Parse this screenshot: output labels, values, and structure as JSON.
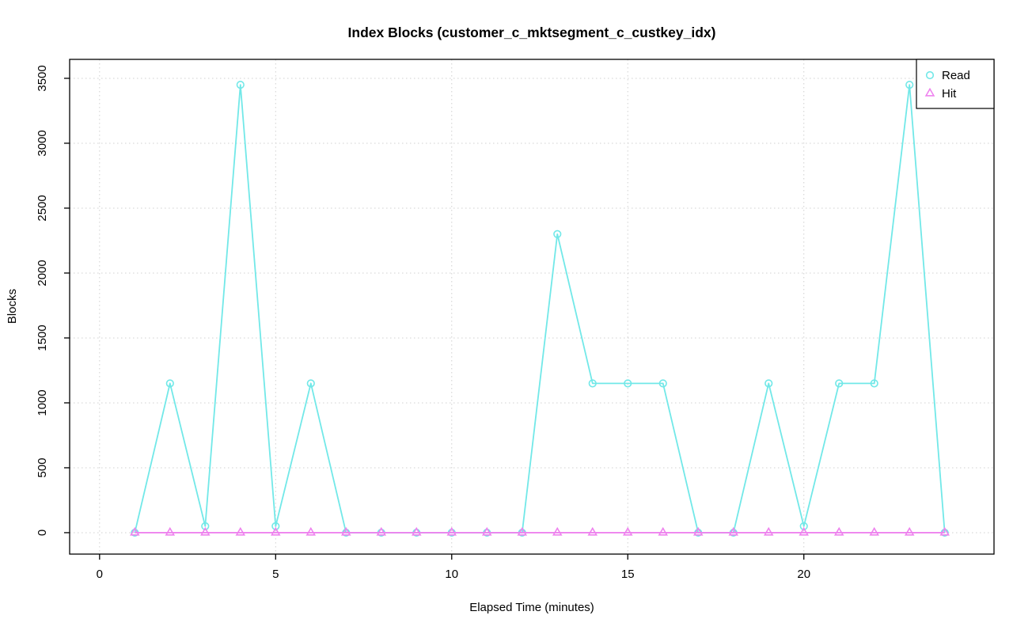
{
  "chart_data": {
    "type": "line",
    "title": "Index Blocks (customer_c_mktsegment_c_custkey_idx)",
    "xlabel": "Elapsed Time (minutes)",
    "ylabel": "Blocks",
    "x": [
      1,
      2,
      3,
      4,
      5,
      6,
      7,
      8,
      9,
      10,
      11,
      12,
      13,
      14,
      15,
      16,
      17,
      18,
      19,
      20,
      21,
      22,
      23,
      24
    ],
    "series": [
      {
        "name": "Read",
        "marker": "circle",
        "color": "#72E8E8",
        "values": [
          0,
          1150,
          50,
          3450,
          50,
          1150,
          0,
          0,
          0,
          0,
          0,
          0,
          2300,
          1150,
          1150,
          1150,
          0,
          0,
          1150,
          50,
          1150,
          1150,
          3450,
          0
        ]
      },
      {
        "name": "Hit",
        "marker": "triangle",
        "color": "#EE82EE",
        "values": [
          0,
          0,
          0,
          0,
          0,
          0,
          0,
          0,
          0,
          0,
          0,
          0,
          0,
          0,
          0,
          0,
          0,
          0,
          0,
          0,
          0,
          0,
          0,
          0
        ]
      }
    ],
    "xticks": [
      0,
      5,
      10,
      15,
      20
    ],
    "yticks": [
      0,
      500,
      1000,
      1500,
      2000,
      2500,
      3000,
      3500
    ],
    "xlim": [
      -0.85,
      25.4
    ],
    "ylim": [
      -165,
      3646
    ],
    "grid": true,
    "legend": {
      "position": "top-right",
      "labels": [
        "Read",
        "Hit"
      ]
    },
    "colors": {
      "grid": "#d0d0d0",
      "axis": "#000000",
      "background": "#ffffff"
    }
  }
}
